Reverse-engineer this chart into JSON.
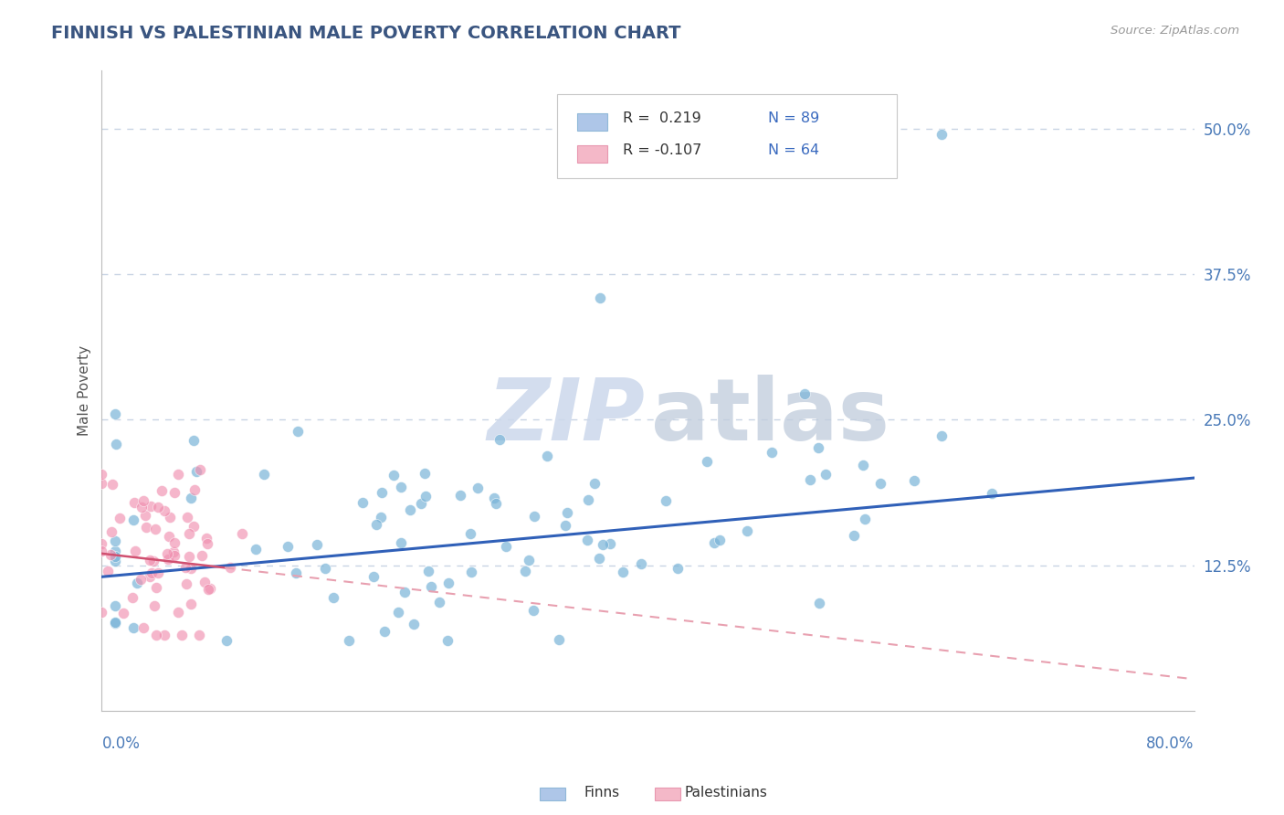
{
  "title": "FINNISH VS PALESTINIAN MALE POVERTY CORRELATION CHART",
  "source": "Source: ZipAtlas.com",
  "ylabel": "Male Poverty",
  "ytick_labels": [
    "12.5%",
    "25.0%",
    "37.5%",
    "50.0%"
  ],
  "ytick_values": [
    0.125,
    0.25,
    0.375,
    0.5
  ],
  "xmin": 0.0,
  "xmax": 0.8,
  "ymin": 0.0,
  "ymax": 0.55,
  "finns_R": 0.219,
  "finns_N": 89,
  "palestinians_R": -0.107,
  "palestinians_N": 64,
  "finn_color": "#7ab4d8",
  "finn_legend_color": "#aec6e8",
  "palestinian_color": "#f090b0",
  "palestinian_legend_color": "#f4b8c8",
  "grid_color": "#c8d4e4",
  "trend_finn_color": "#3060b8",
  "trend_pal_solid_color": "#d05070",
  "trend_pal_dash_color": "#e8a0b0",
  "background_color": "#ffffff",
  "title_color": "#3a5580",
  "source_color": "#999999",
  "axis_label_color": "#4a7ab8",
  "ylabel_color": "#555555",
  "legend_text_color": "#333333",
  "legend_value_color": "#3a6abf",
  "watermark_zip_color": "#ccd8ec",
  "watermark_atlas_color": "#c0ccdc"
}
